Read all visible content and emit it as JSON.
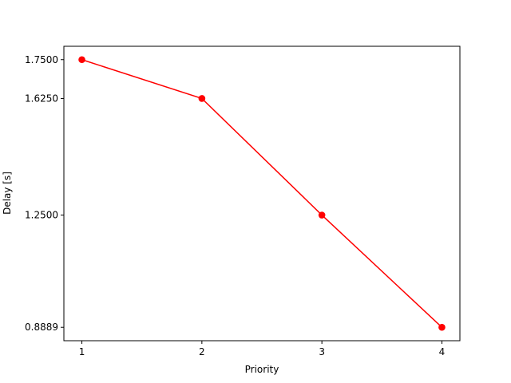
{
  "chart_data": {
    "type": "line",
    "title": "",
    "xlabel": "Priority",
    "ylabel": "Delay [s]",
    "x": [
      1,
      2,
      3,
      4
    ],
    "series": [
      {
        "values": [
          1.75,
          1.625,
          1.25,
          0.8889
        ]
      }
    ],
    "xticks": [
      1,
      2,
      3,
      4
    ],
    "xtick_labels": [
      "1",
      "2",
      "3",
      "4"
    ],
    "yticks": [
      1.75,
      1.625,
      1.25,
      0.8889
    ],
    "ytick_labels": [
      "1.7500",
      "1.6250",
      "1.2500",
      "0.8889"
    ],
    "xlim": [
      0.85,
      4.15
    ],
    "ylim": [
      0.8458,
      1.793
    ],
    "grid": false,
    "line_color": "#ff0000",
    "marker": "circle"
  }
}
